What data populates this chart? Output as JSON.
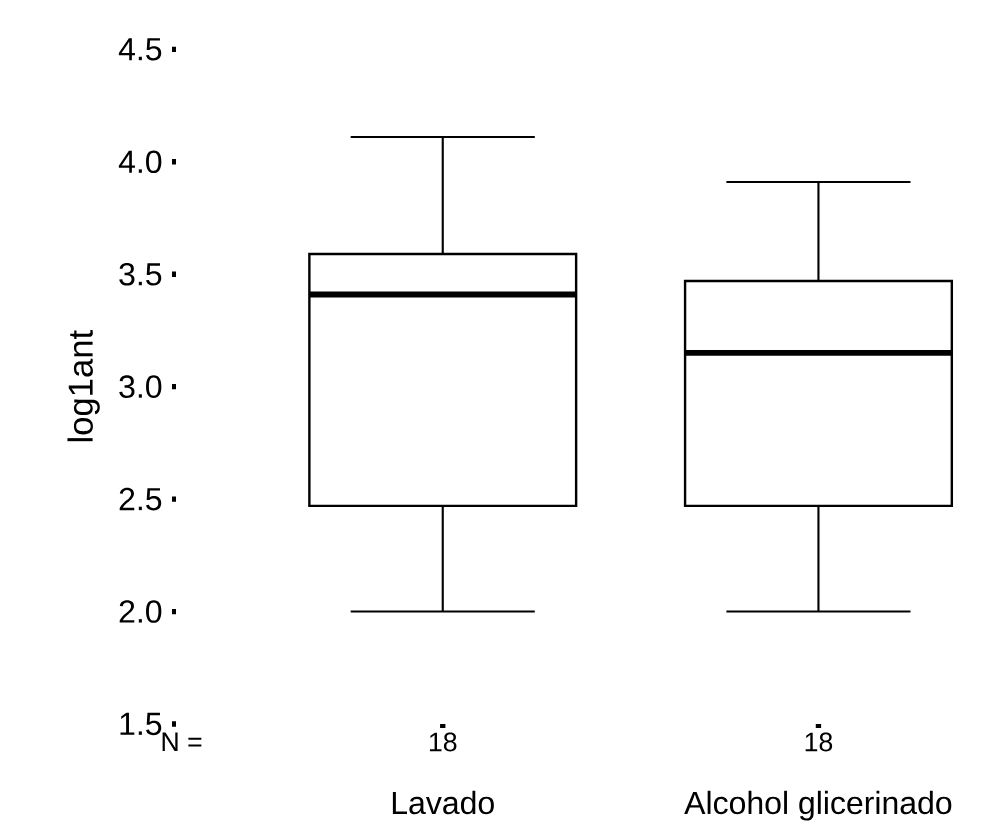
{
  "chart_data": {
    "type": "box",
    "ylabel": "log1ant",
    "categories": [
      "Lavado",
      "Alcohol glicerinado"
    ],
    "boxes": [
      {
        "low": 2.0,
        "q1": 2.47,
        "median": 3.41,
        "q3": 3.59,
        "high": 4.11
      },
      {
        "low": 2.0,
        "q1": 2.47,
        "median": 3.15,
        "q3": 3.47,
        "high": 3.91
      }
    ],
    "ylim": [
      1.5,
      4.5
    ],
    "yticks": [
      1.5,
      {
        "value": 2,
        "label": "2.0"
      },
      2.5,
      {
        "value": 3,
        "label": "3.0"
      },
      3.5,
      {
        "value": 4,
        "label": "4.0"
      },
      4.5
    ],
    "annotations": [
      "N =",
      "18",
      "18"
    ]
  }
}
